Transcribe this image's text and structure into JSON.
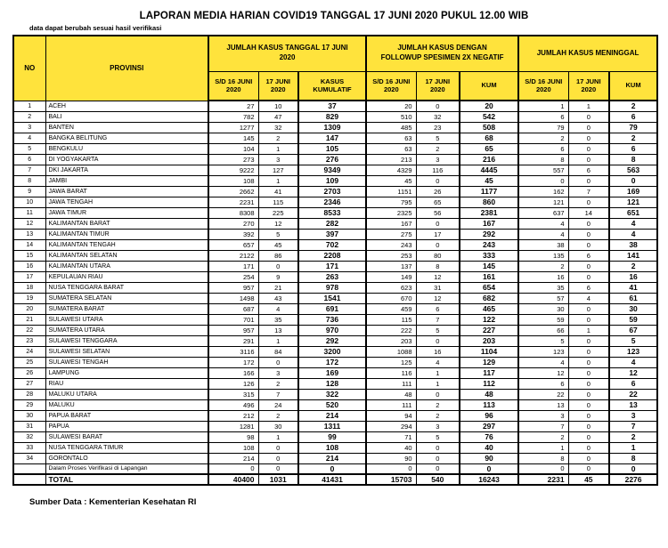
{
  "title": "LAPORAN MEDIA HARIAN COVID19 TANGGAL 17 JUNI 2020 PUKUL 12.00 WIB",
  "disclaimer": "data dapat berubah sesuai hasil verifikasi",
  "source_note": "Sumber Data : Kementerian Kesehatan RI",
  "colors": {
    "header_yellow": "#ffe33c",
    "border": "#000000",
    "background": "#ffffff"
  },
  "table": {
    "columns": {
      "no": "NO",
      "provinsi": "PROVINSI"
    },
    "groups": [
      {
        "label": "JUMLAH KASUS TANGGAL 17 JUNI 2020",
        "sub": [
          "S/D 16 JUNI 2020",
          "17 JUNI 2020",
          "KASUS KUMULATIF"
        ]
      },
      {
        "label": "JUMLAH KASUS DENGAN FOLLOWUP SPESIMEN 2X NEGATIF",
        "sub": [
          "S/D 16 JUNI 2020",
          "17 JUNI 2020",
          "KUM"
        ]
      },
      {
        "label": "JUMLAH KASUS MENINGGAL",
        "sub": [
          "S/D 16 JUNI 2020",
          "17 JUNI 2020",
          "KUM"
        ]
      }
    ],
    "rows": [
      {
        "no": "1",
        "provinsi": "ACEH",
        "values": [
          27,
          10,
          37,
          20,
          0,
          20,
          1,
          1,
          2
        ]
      },
      {
        "no": "2",
        "provinsi": "BALI",
        "values": [
          782,
          47,
          829,
          510,
          32,
          542,
          6,
          0,
          6
        ]
      },
      {
        "no": "3",
        "provinsi": "BANTEN",
        "values": [
          1277,
          32,
          1309,
          485,
          23,
          508,
          79,
          0,
          79
        ]
      },
      {
        "no": "4",
        "provinsi": "BANGKA BELITUNG",
        "values": [
          145,
          2,
          147,
          63,
          5,
          68,
          2,
          0,
          2
        ]
      },
      {
        "no": "5",
        "provinsi": "BENGKULU",
        "values": [
          104,
          1,
          105,
          63,
          2,
          65,
          6,
          0,
          6
        ]
      },
      {
        "no": "6",
        "provinsi": "DI YOGYAKARTA",
        "values": [
          273,
          3,
          276,
          213,
          3,
          216,
          8,
          0,
          8
        ]
      },
      {
        "no": "7",
        "provinsi": "DKI JAKARTA",
        "values": [
          9222,
          127,
          9349,
          4329,
          116,
          4445,
          557,
          6,
          563
        ]
      },
      {
        "no": "8",
        "provinsi": "JAMBI",
        "values": [
          108,
          1,
          109,
          45,
          0,
          45,
          0,
          0,
          0
        ]
      },
      {
        "no": "9",
        "provinsi": "JAWA BARAT",
        "values": [
          2662,
          41,
          2703,
          1151,
          26,
          1177,
          162,
          7,
          169
        ]
      },
      {
        "no": "10",
        "provinsi": "JAWA TENGAH",
        "values": [
          2231,
          115,
          2346,
          795,
          65,
          860,
          121,
          0,
          121
        ]
      },
      {
        "no": "11",
        "provinsi": "JAWA TIMUR",
        "values": [
          8308,
          225,
          8533,
          2325,
          56,
          2381,
          637,
          14,
          651
        ]
      },
      {
        "no": "12",
        "provinsi": "KALIMANTAN BARAT",
        "values": [
          270,
          12,
          282,
          167,
          0,
          167,
          4,
          0,
          4
        ]
      },
      {
        "no": "13",
        "provinsi": "KALIMANTAN TIMUR",
        "values": [
          392,
          5,
          397,
          275,
          17,
          292,
          4,
          0,
          4
        ]
      },
      {
        "no": "14",
        "provinsi": "KALIMANTAN TENGAH",
        "values": [
          657,
          45,
          702,
          243,
          0,
          243,
          38,
          0,
          38
        ]
      },
      {
        "no": "15",
        "provinsi": "KALIMANTAN SELATAN",
        "values": [
          2122,
          86,
          2208,
          253,
          80,
          333,
          135,
          6,
          141
        ]
      },
      {
        "no": "16",
        "provinsi": "KALIMANTAN UTARA",
        "values": [
          171,
          0,
          171,
          137,
          8,
          145,
          2,
          0,
          2
        ]
      },
      {
        "no": "17",
        "provinsi": "KEPULAUAN RIAU",
        "values": [
          254,
          9,
          263,
          149,
          12,
          161,
          16,
          0,
          16
        ]
      },
      {
        "no": "18",
        "provinsi": "NUSA TENGGARA BARAT",
        "values": [
          957,
          21,
          978,
          623,
          31,
          654,
          35,
          6,
          41
        ]
      },
      {
        "no": "19",
        "provinsi": "SUMATERA SELATAN",
        "values": [
          1498,
          43,
          1541,
          670,
          12,
          682,
          57,
          4,
          61
        ]
      },
      {
        "no": "20",
        "provinsi": "SUMATERA BARAT",
        "values": [
          687,
          4,
          691,
          459,
          6,
          465,
          30,
          0,
          30
        ]
      },
      {
        "no": "21",
        "provinsi": "SULAWESI UTARA",
        "values": [
          701,
          35,
          736,
          115,
          7,
          122,
          59,
          0,
          59
        ]
      },
      {
        "no": "22",
        "provinsi": "SUMATERA UTARA",
        "values": [
          957,
          13,
          970,
          222,
          5,
          227,
          66,
          1,
          67
        ]
      },
      {
        "no": "23",
        "provinsi": "SULAWESI TENGGARA",
        "values": [
          291,
          1,
          292,
          203,
          0,
          203,
          5,
          0,
          5
        ]
      },
      {
        "no": "24",
        "provinsi": "SULAWESI SELATAN",
        "values": [
          3116,
          84,
          3200,
          1088,
          16,
          1104,
          123,
          0,
          123
        ]
      },
      {
        "no": "25",
        "provinsi": "SULAWESI TENGAH",
        "values": [
          172,
          0,
          172,
          125,
          4,
          129,
          4,
          0,
          4
        ]
      },
      {
        "no": "26",
        "provinsi": "LAMPUNG",
        "values": [
          166,
          3,
          169,
          116,
          1,
          117,
          12,
          0,
          12
        ]
      },
      {
        "no": "27",
        "provinsi": "RIAU",
        "values": [
          126,
          2,
          128,
          111,
          1,
          112,
          6,
          0,
          6
        ]
      },
      {
        "no": "28",
        "provinsi": "MALUKU UTARA",
        "values": [
          315,
          7,
          322,
          48,
          0,
          48,
          22,
          0,
          22
        ]
      },
      {
        "no": "29",
        "provinsi": "MALUKU",
        "values": [
          496,
          24,
          520,
          111,
          2,
          113,
          13,
          0,
          13
        ]
      },
      {
        "no": "30",
        "provinsi": "PAPUA BARAT",
        "values": [
          212,
          2,
          214,
          94,
          2,
          96,
          3,
          0,
          3
        ]
      },
      {
        "no": "31",
        "provinsi": "PAPUA",
        "values": [
          1281,
          30,
          1311,
          294,
          3,
          297,
          7,
          0,
          7
        ]
      },
      {
        "no": "32",
        "provinsi": "SULAWESI BARAT",
        "values": [
          98,
          1,
          99,
          71,
          5,
          76,
          2,
          0,
          2
        ]
      },
      {
        "no": "33",
        "provinsi": "NUSA TENGGARA TIMUR",
        "values": [
          108,
          0,
          108,
          40,
          0,
          40,
          1,
          0,
          1
        ]
      },
      {
        "no": "34",
        "provinsi": "GORONTALO",
        "values": [
          214,
          0,
          214,
          90,
          0,
          90,
          8,
          0,
          8
        ]
      }
    ],
    "verification_row": {
      "no": "",
      "provinsi": "Dalam Proses Verifikasi di Lapangan",
      "values": [
        0,
        0,
        0,
        0,
        0,
        0,
        0,
        0,
        0
      ]
    },
    "total_row": {
      "no": "",
      "label": "TOTAL",
      "values": [
        40400,
        1031,
        41431,
        15703,
        540,
        16243,
        2231,
        45,
        2276
      ]
    }
  }
}
